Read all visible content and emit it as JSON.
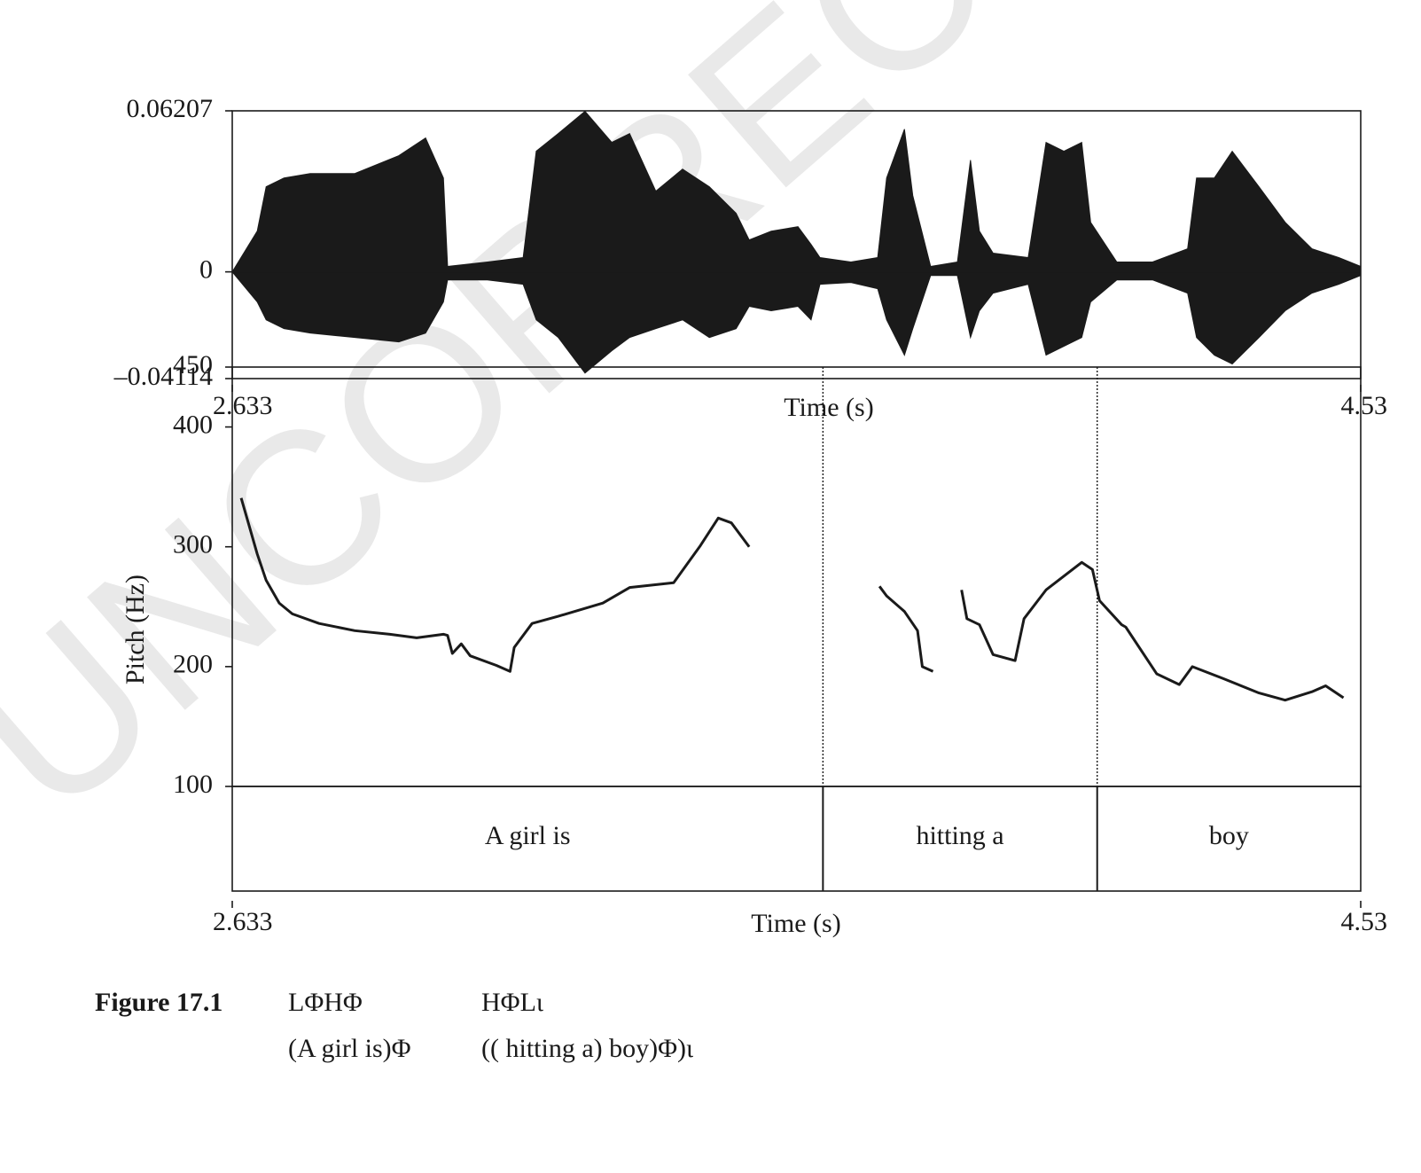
{
  "watermark": "UNCORRECTED",
  "chart_data": [
    {
      "type": "waveform",
      "xlim": [
        2.633,
        4.53
      ],
      "xticks": [
        2.633,
        4.53
      ],
      "xlabel": "Time (s)",
      "ylim": [
        -0.04114,
        0.06207
      ],
      "yticks": [
        {
          "value": -0.04114,
          "label": "–0.04114"
        },
        0,
        0.06207
      ],
      "color": "#1a1a1a",
      "x": [
        2.633,
        2.675,
        2.69,
        2.72,
        2.764,
        2.839,
        2.913,
        2.958,
        2.988,
        2.995,
        3.062,
        3.122,
        3.144,
        3.181,
        3.226,
        3.271,
        3.301,
        3.345,
        3.39,
        3.435,
        3.48,
        3.502,
        3.539,
        3.584,
        3.606,
        3.621,
        3.673,
        3.718,
        3.733,
        3.763,
        3.777,
        3.807,
        3.852,
        3.874,
        3.889,
        3.912,
        3.971,
        4.001,
        4.031,
        4.061,
        4.076,
        4.12,
        4.18,
        4.239,
        4.254,
        4.284,
        4.314,
        4.359,
        4.403,
        4.448,
        4.493,
        4.53
      ],
      "upper": [
        0,
        0.0157,
        0.0328,
        0.0362,
        0.0379,
        0.0379,
        0.0448,
        0.0516,
        0.0362,
        0.0021,
        0.0038,
        0.0055,
        0.0465,
        0.0533,
        0.0619,
        0.0499,
        0.0533,
        0.0311,
        0.0396,
        0.0328,
        0.0226,
        0.0123,
        0.0157,
        0.0174,
        0.0106,
        0.0055,
        0.0038,
        0.0055,
        0.0362,
        0.055,
        0.0294,
        0.0021,
        0.0038,
        0.0431,
        0.0157,
        0.0072,
        0.0055,
        0.0499,
        0.0465,
        0.0499,
        0.0191,
        0.0038,
        0.0038,
        0.0089,
        0.0362,
        0.0362,
        0.0465,
        0.0328,
        0.0191,
        0.0089,
        0.0055,
        0.0021
      ],
      "lower": [
        0,
        -0.0116,
        -0.0185,
        -0.0219,
        -0.0236,
        -0.0253,
        -0.027,
        -0.0236,
        -0.0116,
        -0.0031,
        -0.0031,
        -0.0048,
        -0.0185,
        -0.0253,
        -0.039,
        -0.0304,
        -0.0253,
        -0.0219,
        -0.0185,
        -0.0253,
        -0.0219,
        -0.0133,
        -0.015,
        -0.0133,
        -0.0185,
        -0.0048,
        -0.0041,
        -0.0065,
        -0.0185,
        -0.0321,
        -0.0219,
        -0.0014,
        -0.0014,
        -0.0253,
        -0.015,
        -0.0082,
        -0.0048,
        -0.0321,
        -0.0287,
        -0.0253,
        -0.0116,
        -0.0031,
        -0.0031,
        -0.0082,
        -0.0253,
        -0.0321,
        -0.0355,
        -0.0253,
        -0.015,
        -0.0082,
        -0.0048,
        -0.0014
      ]
    },
    {
      "type": "line",
      "xlim": [
        2.633,
        4.53
      ],
      "ylim": [
        100,
        450
      ],
      "yticks": [
        100,
        200,
        300,
        400,
        450
      ],
      "ylabel": "Pitch (Hz)",
      "color": "#1a1a1a",
      "contours": [
        {
          "x": [
            2.648,
            2.66,
            2.675,
            2.69,
            2.712,
            2.734,
            2.779,
            2.839,
            2.898,
            2.943,
            2.988,
            2.995,
            3.003,
            3.018,
            3.033,
            3.077,
            3.1,
            3.107,
            3.137,
            3.181,
            3.256,
            3.301,
            3.375,
            3.42,
            3.45,
            3.472,
            3.502
          ],
          "values": [
            340.7,
            320,
            294,
            272,
            253,
            244,
            236,
            230,
            227,
            224,
            227,
            226,
            211,
            219,
            209,
            201,
            196,
            216,
            236,
            242,
            253,
            266,
            270,
            301,
            324,
            320,
            300
          ]
        },
        {
          "x": [
            3.721,
            3.733,
            3.763,
            3.785,
            3.793,
            3.811
          ],
          "values": [
            267,
            259,
            246,
            230,
            200,
            196
          ]
        },
        {
          "x": [
            3.859,
            3.868,
            3.889,
            3.912,
            3.949,
            3.964,
            4.001,
            4.061,
            4.079,
            4.091,
            4.128,
            4.135,
            4.187,
            4.225,
            4.247,
            4.299,
            4.359,
            4.403,
            4.448,
            4.471,
            4.501
          ],
          "values": [
            264,
            240,
            235,
            210,
            205,
            240,
            264,
            287,
            281,
            255,
            235,
            233,
            194,
            185,
            200,
            190,
            178,
            172,
            179,
            184,
            174
          ]
        }
      ]
    },
    {
      "type": "intervals",
      "xlim": [
        2.633,
        4.53
      ],
      "xticks": [
        2.633,
        4.53
      ],
      "xlabel": "Time (s)",
      "boundaries": [
        3.626,
        4.087
      ],
      "labels": [
        "A girl is",
        "hitting a",
        "boy"
      ]
    }
  ],
  "caption": {
    "label": "Figure 17.1",
    "rows": [
      [
        "LΦHΦ",
        "HΦLι"
      ],
      [
        "(A girl is)Φ",
        "(( hitting a) boy)Φ)ι"
      ]
    ]
  }
}
